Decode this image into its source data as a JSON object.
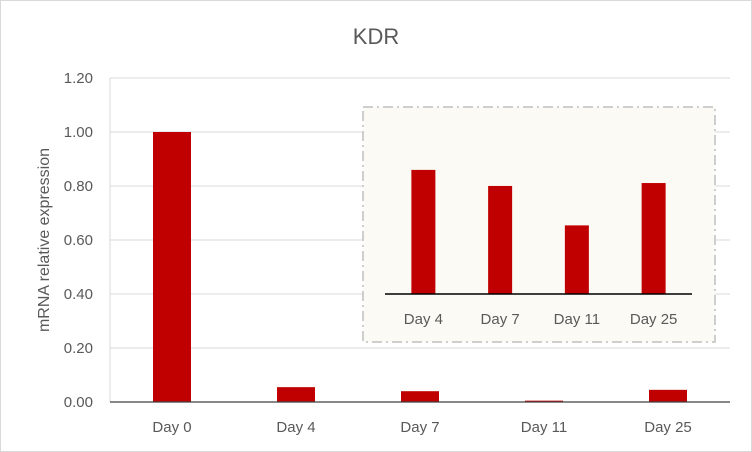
{
  "chart_data": [
    {
      "type": "bar",
      "title": "KDR",
      "xlabel": "",
      "ylabel": "mRNA relative expression",
      "categories": [
        "Day 0",
        "Day 4",
        "Day 7",
        "Day 11",
        "Day 25"
      ],
      "values": [
        1.0,
        0.055,
        0.04,
        0.005,
        0.045
      ],
      "ylim": [
        0,
        1.2
      ],
      "yticks": [
        "0.00",
        "0.20",
        "0.40",
        "0.60",
        "0.80",
        "1.00",
        "1.20"
      ],
      "grid": true,
      "colors": {
        "bar": "#c00000",
        "grid": "#d9d9d9"
      }
    },
    {
      "type": "bar",
      "categories": [
        "Day 4",
        "Day 7",
        "Day 11",
        "Day 25"
      ],
      "values": [
        0.85,
        0.74,
        0.47,
        0.76
      ],
      "colors": {
        "bar": "#c00000",
        "background": "#fbfaf4",
        "border": "#bfbfbf"
      }
    }
  ]
}
